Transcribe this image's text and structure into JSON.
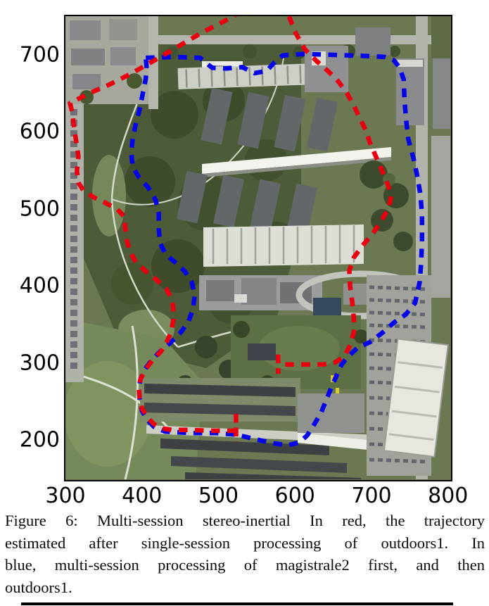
{
  "caption": {
    "lines": [
      "Figure 6: Multi-session stereo-inertial In red, the trajectory",
      "estimated after single-session processing of outdoors1. In",
      "blue, multi-session processing of magistrale2 first, and then",
      "outdoors1."
    ]
  },
  "colors": {
    "red_trajectory": "#e8000f",
    "blue_trajectory": "#0505e8"
  },
  "chart_data": {
    "type": "line",
    "title": "",
    "xlabel": "",
    "ylabel": "",
    "grid": false,
    "legend": "none",
    "xlim": [
      300,
      803
    ],
    "ylim": [
      149,
      750
    ],
    "x_ticks": [
      300,
      400,
      500,
      600,
      700,
      800
    ],
    "y_ticks": [
      200,
      300,
      400,
      500,
      600,
      700
    ],
    "background": "satellite aerial photo of campus",
    "series": [
      {
        "name": "outdoors1 single-session (red dashed)",
        "color": "#e8000f",
        "style": "dashed",
        "points": [
          [
            523,
            212
          ],
          [
            490,
            212
          ],
          [
            463,
            213
          ],
          [
            440,
            213
          ],
          [
            426,
            215
          ],
          [
            415,
            221
          ],
          [
            407,
            230
          ],
          [
            400,
            241
          ],
          [
            397,
            254
          ],
          [
            396,
            267
          ],
          [
            398,
            279
          ],
          [
            405,
            292
          ],
          [
            414,
            304
          ],
          [
            425,
            315
          ],
          [
            432,
            326
          ],
          [
            438,
            340
          ],
          [
            441,
            355
          ],
          [
            441,
            371
          ],
          [
            439,
            383
          ],
          [
            432,
            396
          ],
          [
            420,
            407
          ],
          [
            406,
            418
          ],
          [
            392,
            431
          ],
          [
            384,
            445
          ],
          [
            380,
            460
          ],
          [
            378,
            477
          ],
          [
            377,
            490
          ],
          [
            367,
            500
          ],
          [
            352,
            508
          ],
          [
            337,
            515
          ],
          [
            324,
            523
          ],
          [
            317,
            534
          ],
          [
            315,
            549
          ],
          [
            317,
            568
          ],
          [
            314,
            588
          ],
          [
            311,
            608
          ],
          [
            309,
            625
          ],
          [
            306,
            637
          ],
          [
            329,
            649
          ],
          [
            357,
            661
          ],
          [
            385,
            675
          ],
          [
            415,
            692
          ],
          [
            446,
            710
          ],
          [
            479,
            729
          ],
          [
            520,
            750
          ],
          [
            536,
            763
          ],
          [
            556,
            770
          ],
          [
            580,
            764
          ],
          [
            593,
            748
          ],
          [
            601,
            728
          ],
          [
            613,
            707
          ],
          [
            628,
            692
          ],
          [
            644,
            678
          ],
          [
            657,
            665
          ],
          [
            668,
            650
          ],
          [
            677,
            634
          ],
          [
            684,
            619
          ],
          [
            692,
            603
          ],
          [
            698,
            586
          ],
          [
            704,
            572
          ],
          [
            712,
            554
          ],
          [
            720,
            535
          ],
          [
            726,
            517
          ],
          [
            722,
            500
          ],
          [
            712,
            483
          ],
          [
            701,
            467
          ],
          [
            688,
            452
          ],
          [
            677,
            437
          ],
          [
            671,
            420
          ],
          [
            672,
            400
          ],
          [
            675,
            378
          ],
          [
            677,
            357
          ],
          [
            677,
            340
          ],
          [
            672,
            323
          ],
          [
            665,
            309
          ],
          [
            653,
            301
          ],
          [
            636,
            298
          ],
          [
            615,
            298
          ],
          [
            595,
            298
          ],
          [
            581,
            298
          ]
        ],
        "end_markers": [
          [
            [
              523,
              234
            ],
            [
              523,
              198
            ]
          ],
          [
            [
              578,
              311
            ],
            [
              578,
              286
            ]
          ]
        ]
      },
      {
        "name": "magistrale2 then outdoors1 multi-session (blue dashed)",
        "color": "#0505e8",
        "style": "dashed",
        "points": [
          [
            405,
            696
          ],
          [
            444,
            697
          ],
          [
            476,
            696
          ],
          [
            484,
            689
          ],
          [
            492,
            683
          ],
          [
            510,
            682
          ],
          [
            531,
            684
          ],
          [
            547,
            676
          ],
          [
            563,
            679
          ],
          [
            574,
            691
          ],
          [
            584,
            699
          ],
          [
            612,
            701
          ],
          [
            642,
            700
          ],
          [
            672,
            699
          ],
          [
            702,
            698
          ],
          [
            718,
            697
          ],
          [
            729,
            693
          ],
          [
            737,
            683
          ],
          [
            742,
            668
          ],
          [
            743,
            643
          ],
          [
            745,
            618
          ],
          [
            748,
            591
          ],
          [
            755,
            565
          ],
          [
            760,
            542
          ],
          [
            764,
            518
          ],
          [
            766,
            492
          ],
          [
            766,
            460
          ],
          [
            765,
            431
          ],
          [
            763,
            405
          ],
          [
            757,
            378
          ],
          [
            745,
            363
          ],
          [
            730,
            353
          ],
          [
            714,
            339
          ],
          [
            698,
            327
          ],
          [
            681,
            319
          ],
          [
            669,
            308
          ],
          [
            661,
            298
          ],
          [
            654,
            283
          ],
          [
            647,
            267
          ],
          [
            641,
            252
          ],
          [
            634,
            235
          ],
          [
            625,
            220
          ],
          [
            616,
            206
          ],
          [
            606,
            197
          ],
          [
            590,
            193
          ],
          [
            571,
            196
          ],
          [
            553,
            200
          ],
          [
            536,
            204
          ],
          [
            522,
            207
          ],
          [
            498,
            209
          ],
          [
            470,
            209
          ],
          [
            444,
            210
          ],
          [
            430,
            211
          ],
          [
            416,
            217
          ],
          [
            407,
            226
          ],
          [
            400,
            238
          ],
          [
            397,
            252
          ],
          [
            396,
            266
          ],
          [
            398,
            279
          ],
          [
            404,
            292
          ],
          [
            413,
            304
          ],
          [
            424,
            315
          ],
          [
            437,
            326
          ],
          [
            451,
            340
          ],
          [
            461,
            354
          ],
          [
            467,
            371
          ],
          [
            469,
            389
          ],
          [
            465,
            405
          ],
          [
            456,
            419
          ],
          [
            443,
            431
          ],
          [
            431,
            441
          ],
          [
            424,
            455
          ],
          [
            422,
            472
          ],
          [
            422,
            494
          ],
          [
            418,
            511
          ],
          [
            408,
            528
          ],
          [
            396,
            541
          ],
          [
            388,
            554
          ],
          [
            386,
            573
          ],
          [
            388,
            592
          ],
          [
            392,
            610
          ],
          [
            397,
            629
          ],
          [
            401,
            649
          ],
          [
            405,
            669
          ],
          [
            406,
            685
          ],
          [
            405,
            696
          ]
        ],
        "end_markers": []
      }
    ]
  }
}
